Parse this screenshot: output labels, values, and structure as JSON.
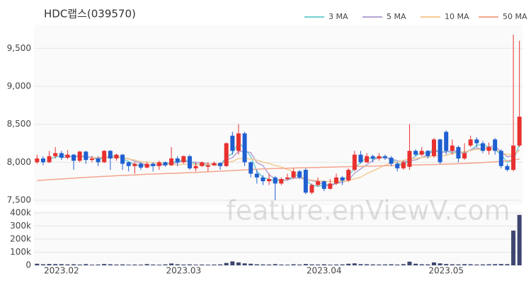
{
  "chart_data": [
    {
      "type": "candlestick",
      "title": "HDC랩스(039570)",
      "watermark": "feature.enViewV.com",
      "categories": [
        null,
        null,
        null,
        null,
        "2023.02",
        null,
        null,
        null,
        null,
        null,
        null,
        null,
        null,
        null,
        null,
        null,
        null,
        null,
        null,
        null,
        null,
        null,
        null,
        null,
        "2023.03",
        null,
        null,
        null,
        null,
        null,
        null,
        null,
        null,
        null,
        null,
        null,
        null,
        null,
        null,
        null,
        null,
        null,
        null,
        null,
        null,
        null,
        null,
        "2023.04",
        null,
        null,
        null,
        null,
        null,
        null,
        null,
        null,
        null,
        null,
        null,
        null,
        null,
        null,
        null,
        null,
        null,
        null,
        null,
        "2023.05",
        null,
        null,
        null,
        null,
        null,
        null,
        null,
        null,
        null,
        null,
        null,
        null
      ],
      "open": [
        8000,
        8050,
        8000,
        8080,
        8120,
        8060,
        8100,
        8020,
        8140,
        8030,
        8050,
        8000,
        8150,
        8050,
        8100,
        8000,
        7950,
        7980,
        7930,
        7980,
        7950,
        8000,
        7960,
        8050,
        8000,
        8080,
        7920,
        7950,
        7940,
        7960,
        7990,
        7950,
        8350,
        8150,
        8380,
        8000,
        7850,
        7800,
        7750,
        7800,
        7720,
        7780,
        7800,
        7880,
        7900,
        7600,
        7700,
        7750,
        7650,
        7720,
        7800,
        7760,
        7900,
        8100,
        8000,
        8080,
        8050,
        8080,
        8060,
        7980,
        7920,
        7940,
        8150,
        8100,
        8150,
        8080,
        8300,
        8400,
        8150,
        8200,
        8050,
        8220,
        8300,
        8250,
        8150,
        8300,
        8150,
        7950,
        7900,
        8220
      ],
      "high": [
        8100,
        8080,
        8150,
        8200,
        8150,
        8160,
        8110,
        8150,
        8150,
        8080,
        8080,
        8160,
        8160,
        8110,
        8110,
        8010,
        8000,
        8000,
        8000,
        8000,
        8020,
        8010,
        8200,
        8080,
        8090,
        8100,
        8000,
        8010,
        8000,
        8010,
        8000,
        8260,
        8400,
        8500,
        8400,
        8010,
        7900,
        7830,
        7850,
        7820,
        7800,
        7850,
        7920,
        7900,
        7920,
        7720,
        7800,
        7760,
        7780,
        7850,
        7820,
        7920,
        8150,
        8150,
        8120,
        8100,
        8120,
        8100,
        8080,
        8000,
        8020,
        8500,
        8170,
        8200,
        8160,
        8320,
        8310,
        8420,
        8300,
        8220,
        8250,
        8350,
        8330,
        8280,
        8260,
        8320,
        8170,
        7980,
        9680,
        9600
      ],
      "low": [
        7980,
        7960,
        7990,
        8050,
        8030,
        8040,
        7900,
        8000,
        7980,
        8000,
        7950,
        7990,
        7900,
        8020,
        7900,
        7880,
        7850,
        7900,
        7920,
        7880,
        7900,
        7940,
        7950,
        7950,
        7980,
        7900,
        7880,
        7940,
        7880,
        7950,
        7900,
        7940,
        8100,
        8100,
        7950,
        7800,
        7720,
        7700,
        7700,
        7500,
        7700,
        7760,
        7780,
        7780,
        7580,
        7580,
        7680,
        7620,
        7640,
        7700,
        7700,
        7740,
        7880,
        7980,
        7990,
        8000,
        8020,
        8030,
        7950,
        7880,
        7900,
        7900,
        8080,
        8080,
        8050,
        8060,
        7980,
        8100,
        8100,
        8000,
        8030,
        8200,
        8200,
        8120,
        8100,
        8100,
        7920,
        7880,
        7880,
        8200
      ],
      "close": [
        8050,
        8000,
        8080,
        8120,
        8060,
        8100,
        8020,
        8140,
        8030,
        8050,
        8000,
        8150,
        8050,
        8100,
        7980,
        7950,
        7980,
        7930,
        7980,
        7950,
        8000,
        7960,
        8050,
        8000,
        8080,
        7920,
        7950,
        8000,
        7960,
        7990,
        7950,
        8250,
        8150,
        8380,
        8000,
        7850,
        7800,
        7750,
        7780,
        7720,
        7780,
        7800,
        7880,
        7800,
        7600,
        7700,
        7750,
        7650,
        7720,
        7800,
        7760,
        7900,
        8100,
        8000,
        8080,
        8050,
        8080,
        8060,
        7980,
        7920,
        8000,
        8150,
        8100,
        8150,
        8080,
        8300,
        8000,
        8150,
        8220,
        8050,
        8120,
        8300,
        8250,
        8150,
        8200,
        8150,
        7950,
        7900,
        8220,
        8600
      ],
      "up_color": "#e8312f",
      "down_color": "#1f5fd1",
      "ylim": [
        7435,
        9810
      ],
      "yticks": [
        {
          "value": 7500,
          "label": "7,500"
        },
        {
          "value": 8000,
          "label": "8,000"
        },
        {
          "value": 8500,
          "label": "8,500"
        },
        {
          "value": 9000,
          "label": "9,000"
        },
        {
          "value": 9500,
          "label": "9,500"
        }
      ],
      "grid": true,
      "legend": "top-right",
      "series": [
        {
          "name": "3 MA",
          "color": "#6fd0cf",
          "values": [
            null,
            null,
            8043,
            8067,
            8087,
            8093,
            8060,
            8087,
            8063,
            8073,
            8027,
            8067,
            8067,
            8100,
            8043,
            8010,
            7970,
            7953,
            7963,
            7953,
            7977,
            7970,
            8003,
            8003,
            8043,
            8000,
            7983,
            7957,
            7970,
            7983,
            7967,
            8063,
            8117,
            8260,
            8177,
            8077,
            7883,
            7800,
            7777,
            7750,
            7760,
            7767,
            7820,
            7827,
            7760,
            7700,
            7683,
            7700,
            7707,
            7723,
            7760,
            7820,
            7920,
            8000,
            8060,
            8043,
            8070,
            8063,
            8040,
            7987,
            7967,
            8023,
            8083,
            8133,
            8110,
            8177,
            8127,
            8150,
            8123,
            8140,
            8130,
            8157,
            8223,
            8233,
            8200,
            8167,
            8100,
            8000,
            8023,
            8240
          ]
        },
        {
          "name": "5 MA",
          "color": "#b3a3d3",
          "values": [
            null,
            null,
            null,
            null,
            8062,
            8072,
            8076,
            8088,
            8070,
            8068,
            8048,
            8074,
            8056,
            8070,
            8056,
            8046,
            8012,
            7988,
            7964,
            7958,
            7968,
            7964,
            7988,
            7992,
            8018,
            8002,
            8000,
            7990,
            7982,
            7964,
            7970,
            8030,
            8060,
            8144,
            8146,
            8126,
            7996,
            7956,
            7836,
            7780,
            7766,
            7766,
            7792,
            7796,
            7772,
            7756,
            7746,
            7700,
            7684,
            7724,
            7736,
            7766,
            7856,
            7912,
            7968,
            8026,
            8062,
            8054,
            8050,
            8018,
            8008,
            8022,
            8030,
            8064,
            8096,
            8156,
            8126,
            8136,
            8150,
            8144,
            8108,
            8168,
            8188,
            8174,
            8204,
            8210,
            8140,
            8070,
            8084,
            8164
          ]
        },
        {
          "name": "10 MA",
          "color": "#f3cb93",
          "values": [
            null,
            null,
            null,
            null,
            null,
            null,
            null,
            null,
            null,
            8065,
            8060,
            8075,
            8072,
            8070,
            8056,
            8041,
            8029,
            8008,
            8003,
            7993,
            7993,
            7974,
            7974,
            7964,
            7974,
            7971,
            7968,
            7975,
            7973,
            7977,
            7972,
            8001,
            8011,
            8049,
            8049,
            8042,
            8027,
            8002,
            7984,
            7957,
            7940,
            7905,
            7878,
            7820,
            7780,
            7765,
            7760,
            7750,
            7744,
            7752,
            7750,
            7760,
            7782,
            7802,
            7850,
            7885,
            7922,
            7963,
            7989,
            8001,
            8025,
            8050,
            8050,
            8065,
            8065,
            8090,
            8082,
            8091,
            8115,
            8128,
            8140,
            8155,
            8170,
            8170,
            8182,
            8167,
            8132,
            8100,
            8110,
            8155
          ]
        },
        {
          "name": "50 MA",
          "color": "#f4a48e",
          "values": [
            7760,
            7765,
            7770,
            7775,
            7780,
            7785,
            7790,
            7795,
            7800,
            7805,
            7810,
            7814,
            7818,
            7822,
            7826,
            7830,
            7834,
            7838,
            7842,
            7845,
            7848,
            7851,
            7854,
            7857,
            7860,
            7863,
            7866,
            7870,
            7874,
            7878,
            7882,
            7886,
            7890,
            7895,
            7900,
            7904,
            7908,
            7912,
            7915,
            7918,
            7920,
            7922,
            7924,
            7926,
            7928,
            7930,
            7932,
            7934,
            7936,
            7938,
            7940,
            7942,
            7944,
            7946,
            7948,
            7950,
            7952,
            7954,
            7956,
            7958,
            7960,
            7962,
            7964,
            7966,
            7968,
            7970,
            7972,
            7975,
            7978,
            7981,
            7984,
            7988,
            7992,
            7996,
            8000,
            8005,
            8010,
            8020,
            8030,
            8040
          ]
        }
      ]
    },
    {
      "type": "bar",
      "color": "#3e4670",
      "values": [
        12000,
        8000,
        10000,
        9000,
        9000,
        7000,
        8000,
        6000,
        9000,
        5000,
        6000,
        10000,
        8000,
        6000,
        7000,
        5000,
        6000,
        5000,
        9000,
        6000,
        5000,
        7000,
        14000,
        8000,
        6000,
        7000,
        5000,
        6000,
        5000,
        6000,
        7000,
        18000,
        30000,
        22000,
        15000,
        12000,
        8000,
        7000,
        6000,
        9000,
        6000,
        5000,
        8000,
        6000,
        10000,
        7000,
        6000,
        8000,
        5000,
        6000,
        7000,
        12000,
        15000,
        9000,
        8000,
        7000,
        6000,
        7000,
        8000,
        6000,
        9000,
        28000,
        12000,
        8000,
        7000,
        22000,
        15000,
        10000,
        8000,
        7000,
        9000,
        8000,
        6000,
        7000,
        8000,
        9000,
        10000,
        9000,
        265000,
        385000
      ],
      "ylim": [
        0,
        416000
      ],
      "yticks": [
        0,
        {
          "value": 100000,
          "label": "100k"
        },
        {
          "value": 200000,
          "label": "200k"
        },
        {
          "value": 300000,
          "label": "300k"
        },
        {
          "value": 400000,
          "label": "400k"
        }
      ],
      "grid": true
    }
  ]
}
